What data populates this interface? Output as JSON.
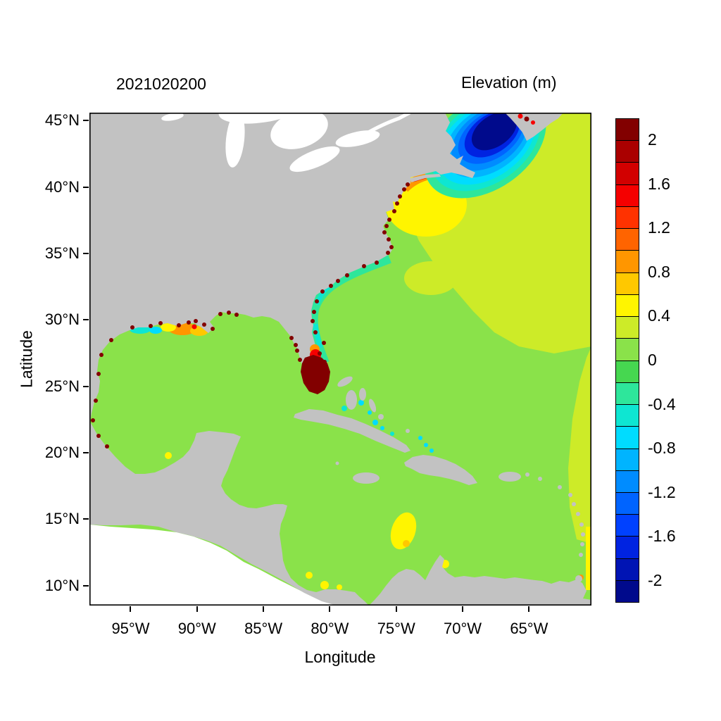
{
  "header": {
    "left_title": "2021020200",
    "right_title": "Elevation (m)"
  },
  "axes": {
    "xlabel": "Longitude",
    "ylabel": "Latitude",
    "x_tick_labels": [
      "95°W",
      "90°W",
      "85°W",
      "80°W",
      "75°W",
      "70°W",
      "65°W"
    ],
    "y_tick_labels": [
      "45°N",
      "40°N",
      "35°N",
      "30°N",
      "25°N",
      "20°N",
      "15°N",
      "10°N"
    ]
  },
  "chart_data": {
    "type": "heatmap",
    "title": "2021020200",
    "colorbar_title": "Elevation (m)",
    "xlabel": "Longitude",
    "ylabel": "Latitude",
    "x_ticks_deg_west": [
      95,
      90,
      85,
      80,
      75,
      70,
      65
    ],
    "y_ticks_deg_north": [
      45,
      40,
      35,
      30,
      25,
      20,
      15,
      10
    ],
    "lon_extent_deg_west": [
      98.1,
      60.3
    ],
    "lat_extent_deg_north": [
      8.5,
      45.6
    ],
    "grid": false,
    "background_color": "#ffffff",
    "land_color": "#c2c2c2",
    "frame_color": "#000000",
    "colorbar": {
      "max": 2.2,
      "min": -2.2,
      "step": 0.2,
      "tick_values": [
        2,
        1.6,
        1.2,
        0.8,
        0.4,
        0,
        -0.4,
        -0.8,
        -1.2,
        -1.6,
        -2
      ],
      "tick_labels": [
        "2",
        "1.6",
        "1.2",
        "0.8",
        "0.4",
        "0",
        "-0.4",
        "-0.8",
        "-1.2",
        "-1.6",
        "-2"
      ],
      "colors_top_to_bottom": [
        "#820000",
        "#aa0000",
        "#d20000",
        "#f50000",
        "#ff3200",
        "#ff6400",
        "#ff9600",
        "#ffc800",
        "#fff500",
        "#cdeb28",
        "#8ae24a",
        "#46d750",
        "#2ee69b",
        "#0ee6d2",
        "#00dcff",
        "#00b4ff",
        "#008cff",
        "#0064ff",
        "#0041ff",
        "#0023e1",
        "#0014b4",
        "#000a8c"
      ]
    },
    "features": [
      {
        "name": "open-ocean-background",
        "elevation_m": 0.1,
        "description": "Near-zero elevation (light green) over Gulf of Mexico, Caribbean Sea and central Atlantic"
      },
      {
        "name": "northwest-atlantic-setup",
        "elevation_m": 0.3,
        "description": "Broad yellow-green positive anomaly offshore of the US northeast coast and along the eastern edge"
      },
      {
        "name": "offshore-yellow-patch",
        "elevation_m": 0.5,
        "description": "Yellow setup patch south of New England near 39-41N, 67-73W"
      },
      {
        "name": "new-jersey-coast-setup",
        "elevation_m": 0.9,
        "description": "Orange/red coastal setup along New Jersey and Long Island"
      },
      {
        "name": "gulf-of-maine-setdown",
        "elevation_m": -2.1,
        "description": "Deep navy negative elevation in the Gulf of Maine / Bay of Fundy with concentric blue-cyan fringe"
      },
      {
        "name": "southeast-shelf-setdown",
        "elevation_m": -0.4,
        "description": "Aquamarine/cyan band along southeast US shelf with cyan specks around the Bahamas"
      },
      {
        "name": "south-florida-extreme",
        "elevation_m": 2.1,
        "description": "Dark red extreme elevation covering south Florida"
      },
      {
        "name": "louisiana-coast-setup",
        "elevation_m": 0.8,
        "description": "Orange and yellow setup along the Louisiana coast with dark red speckles"
      },
      {
        "name": "texas-shelf-setdown",
        "elevation_m": -0.6,
        "description": "Small cyan patches off western Louisiana / Texas"
      },
      {
        "name": "caribbean-coastal-setup",
        "elevation_m": 0.5,
        "description": "Yellow patches near Colombia, Panama, Gulf of Venezuela, Trinidad and Bay of Campeche"
      },
      {
        "name": "coastal-extreme-speckles",
        "elevation_m": 2.1,
        "description": "Dark red speckles along Gulf and Atlantic coastlines"
      }
    ]
  }
}
